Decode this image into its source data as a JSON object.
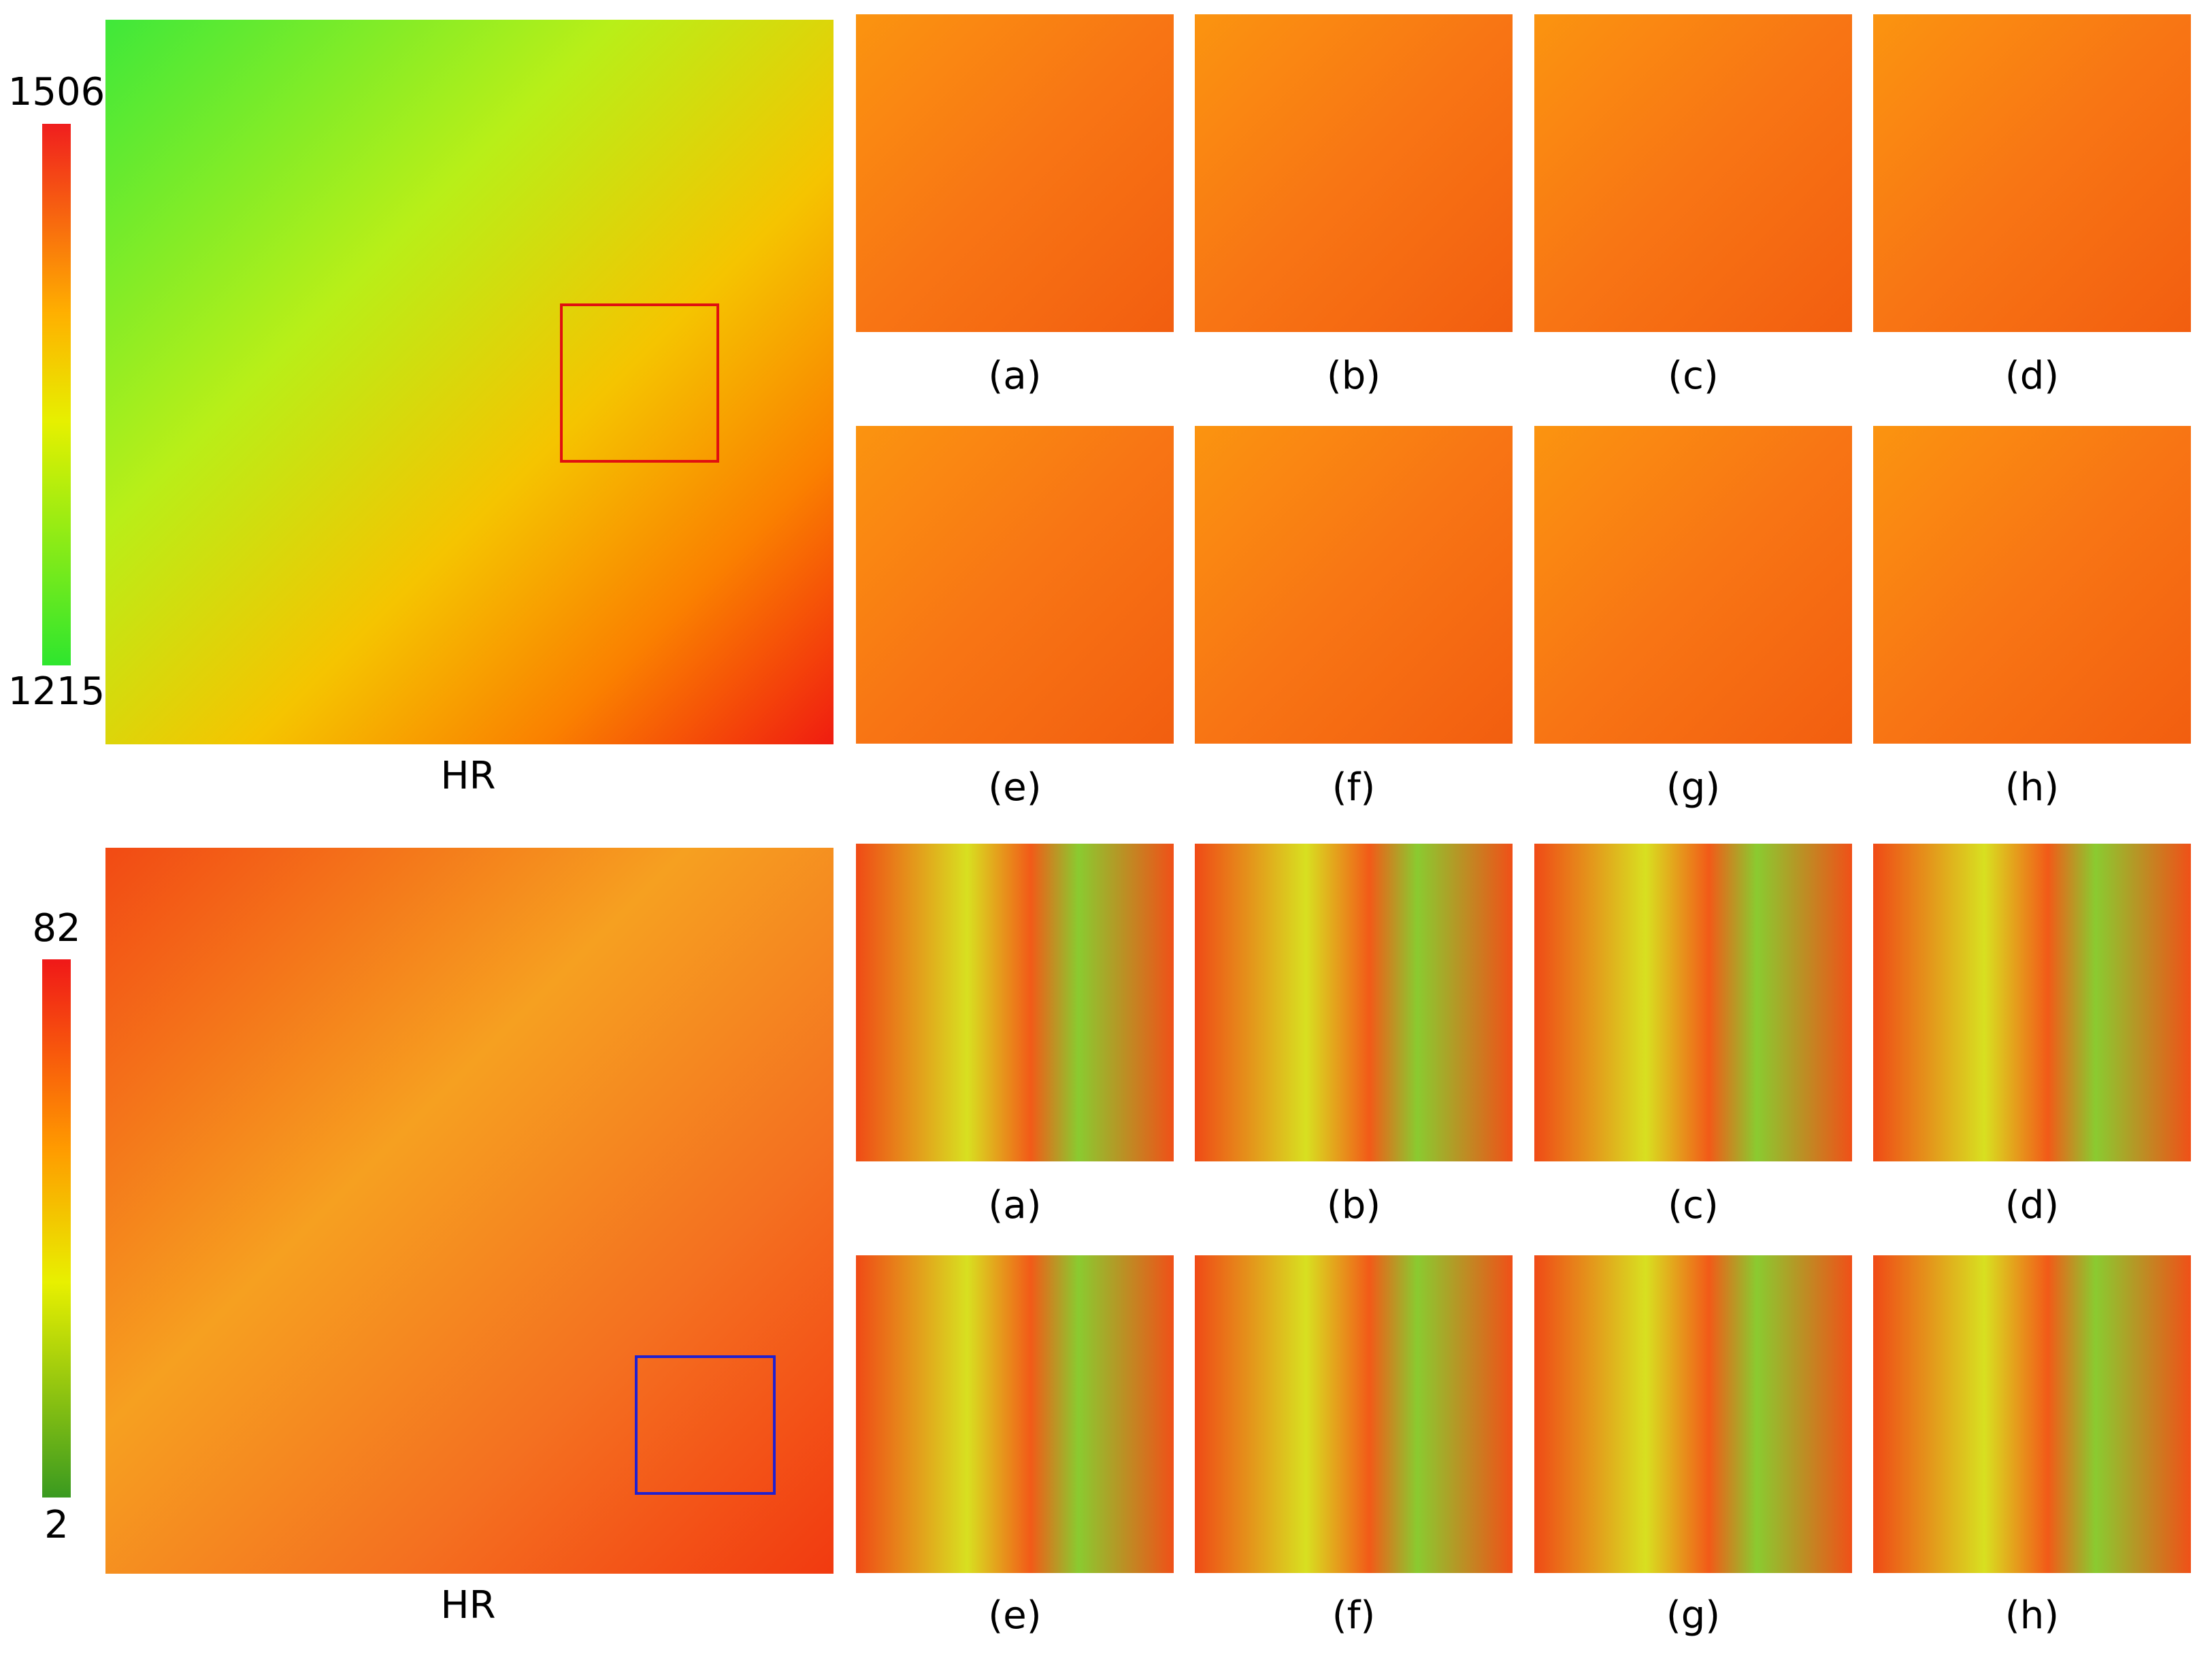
{
  "panels": [
    {
      "colorbar": {
        "max": "1506",
        "min": "1215"
      },
      "main_label": "HR",
      "crops": [
        "(a)",
        "(b)",
        "(c)",
        "(d)",
        "(e)",
        "(f)",
        "(g)",
        "(h)"
      ]
    },
    {
      "colorbar": {
        "max": "82",
        "min": "2"
      },
      "main_label": "HR",
      "crops": [
        "(a)",
        "(b)",
        "(c)",
        "(d)",
        "(e)",
        "(f)",
        "(g)",
        "(h)"
      ]
    }
  ]
}
